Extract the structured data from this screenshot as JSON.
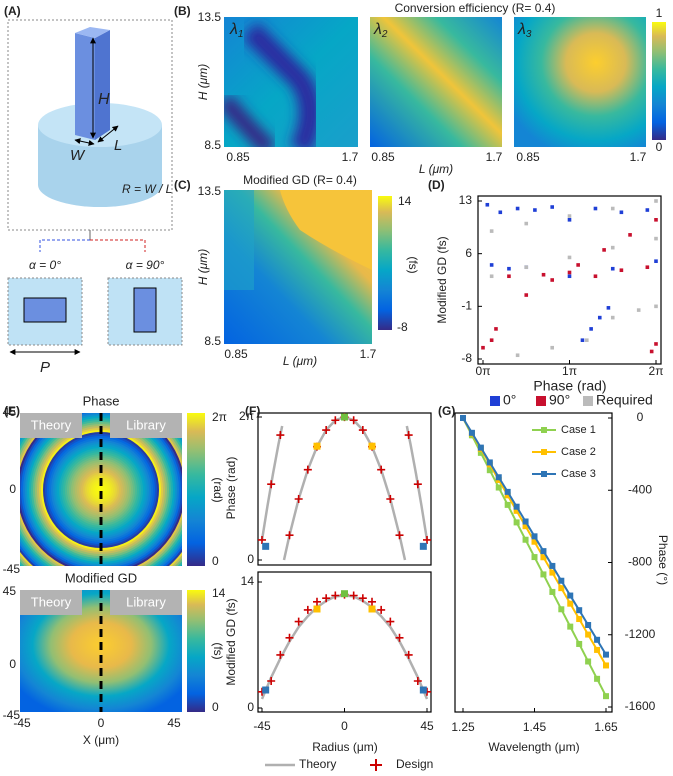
{
  "panel_a": {
    "label": "(A)",
    "H": "H",
    "W": "W",
    "L": "L",
    "ratio": "R = W / L",
    "alpha0": "α = 0°",
    "alpha90": "α = 90°",
    "P": "P"
  },
  "panel_b": {
    "label": "(B)",
    "title": "Conversion efficiency (R= 0.4)",
    "lambda": "λ",
    "indices": [
      "1",
      "2",
      "3"
    ],
    "ylabel": "H (μm)",
    "xlabel": "L (μm)",
    "yticks": [
      13.5,
      8.5
    ],
    "xticks": [
      0.85,
      1.7
    ],
    "cbar_ticks": [
      1,
      0
    ]
  },
  "panel_c": {
    "label": "(C)",
    "title": "Modified GD (R= 0.4)",
    "ylabel": "H (μm)",
    "xlabel": "L (μm)",
    "yticks": [
      13.5,
      8.5
    ],
    "xticks": [
      0.85,
      1.7
    ],
    "cbar_ticks": [
      14,
      -8
    ],
    "cbar_unit": "(fs)"
  },
  "panel_e": {
    "label": "(E)",
    "phase_title": "Phase",
    "gd_title": "Modified GD",
    "theory": "Theory",
    "library": "Library",
    "yticks": [
      45,
      0,
      -45
    ],
    "xticks": [
      -45,
      0,
      45
    ],
    "xlabel": "X (μm)",
    "phase_cbar": [
      {
        "value": 6.283,
        "label": "2π"
      },
      0
    ],
    "phase_unit": "(rad)",
    "gd_cbar": [
      14,
      0
    ],
    "gd_unit": "(fs)"
  },
  "chart_data": [
    {
      "type": "scatter",
      "panel": "(D)",
      "ylabel": "Modified GD (fs)",
      "xlabel": "Phase (rad)",
      "xlim": [
        0,
        2
      ],
      "xticks": [
        {
          "value": 0,
          "label": "0π"
        },
        {
          "value": 1,
          "label": "1π"
        },
        {
          "value": 2,
          "label": "2π"
        }
      ],
      "ylim": [
        -8,
        13
      ],
      "yticks": [
        13,
        6,
        -1,
        -8
      ],
      "series": [
        {
          "name": "0°",
          "color": "#1f3fd6",
          "marker": "square",
          "x": [
            0.05,
            0.2,
            0.4,
            0.6,
            0.8,
            1.0,
            1.3,
            1.6,
            1.9,
            0.1,
            0.3,
            0.5,
            1.15,
            1.25,
            1.35,
            1.45,
            1.0,
            1.5,
            2.0
          ],
          "values": [
            12.5,
            11.5,
            12.0,
            11.8,
            12.2,
            10.5,
            12.0,
            11.5,
            11.8,
            4.5,
            4.0,
            4.2,
            -5.5,
            -4.0,
            -2.5,
            -1.2,
            3.0,
            4.0,
            5.0
          ]
        },
        {
          "name": "90°",
          "color": "#c8102e",
          "marker": "square",
          "x": [
            0.0,
            0.1,
            0.15,
            0.5,
            0.8,
            1.1,
            1.4,
            1.7,
            2.0,
            0.3,
            0.7,
            1.0,
            1.3,
            1.6,
            1.9,
            1.95,
            2.0
          ],
          "values": [
            -6.5,
            -5.5,
            -4.0,
            0.5,
            2.5,
            4.5,
            6.5,
            8.5,
            10.5,
            3.0,
            3.2,
            3.5,
            3.0,
            3.8,
            4.2,
            -7.0,
            -6.0
          ]
        },
        {
          "name": "Required",
          "color": "#bbbbbb",
          "marker": "square",
          "x": [
            0.1,
            0.5,
            1.0,
            1.5,
            2.0,
            0.1,
            0.5,
            1.0,
            1.5,
            2.0,
            0.4,
            0.8,
            1.2,
            1.5,
            1.8,
            2.0
          ],
          "values": [
            9.0,
            10.0,
            11.0,
            12.0,
            13.0,
            3.0,
            4.2,
            5.5,
            6.8,
            8.0,
            -7.5,
            -6.5,
            -5.5,
            -2.5,
            -1.5,
            -1.0
          ]
        }
      ]
    },
    {
      "type": "line",
      "panel": "(F)",
      "ylabel": "Phase (rad)",
      "xlim": [
        -45,
        45
      ],
      "ylim": [
        0,
        6.283
      ],
      "yticks": [
        0,
        {
          "value": 6.283,
          "label": "2π"
        }
      ],
      "series": [
        {
          "color": "#b0b0b0",
          "line": true,
          "x": [
            -45,
            -42,
            -39,
            -36,
            -34,
            -33.5,
            -33,
            -30,
            -25,
            -20,
            -15,
            -10,
            -5,
            0,
            5,
            10,
            15,
            20,
            25,
            30,
            33,
            33.5,
            34,
            36,
            39,
            42,
            45
          ],
          "values": [
            0.88,
            2.38,
            3.79,
            5.09,
            5.89,
            null,
            0.0,
            1.09,
            2.68,
            3.97,
            4.98,
            5.71,
            6.14,
            6.28,
            6.14,
            5.71,
            4.98,
            3.97,
            2.68,
            1.09,
            0.0,
            null,
            5.89,
            5.09,
            3.79,
            2.38,
            0.88
          ]
        },
        {
          "color": "#cc0000",
          "marker": "plus",
          "x": [
            -45,
            -40,
            -35,
            -30,
            -25,
            -20,
            -15,
            -10,
            -5,
            0,
            5,
            10,
            15,
            20,
            25,
            30,
            35,
            40,
            45
          ],
          "values": [
            0.88,
            3.33,
            5.49,
            1.09,
            2.68,
            3.97,
            4.98,
            5.71,
            6.14,
            6.28,
            6.14,
            5.71,
            4.98,
            3.97,
            2.68,
            1.09,
            5.49,
            3.33,
            0.88
          ]
        },
        {
          "marker": "square",
          "colors": [
            "#2e75b6",
            "#ffc000",
            "#70c040",
            "#ffc000",
            "#2e75b6"
          ],
          "x": [
            -43,
            -15,
            0,
            15,
            43
          ],
          "values": [
            0.6,
            5.0,
            6.28,
            5.0,
            0.6
          ]
        }
      ]
    },
    {
      "type": "line",
      "ylabel": "Modified GD (fs)",
      "xlabel": "Radius (μm)",
      "xlim": [
        -45,
        45
      ],
      "xticks": [
        -45,
        0,
        45
      ],
      "ylim": [
        0,
        14
      ],
      "yticks": [
        0,
        14
      ],
      "series": [
        {
          "name": "Theory",
          "color": "#b0b0b0",
          "line": true,
          "x": [
            -45,
            -40,
            -35,
            -30,
            -25,
            -20,
            -15,
            -10,
            -5,
            0,
            5,
            10,
            15,
            20,
            25,
            30,
            35,
            40,
            45
          ],
          "values": [
            1.0,
            3.4,
            5.5,
            7.4,
            9.0,
            10.2,
            11.2,
            11.9,
            12.4,
            12.5,
            12.4,
            11.9,
            11.2,
            10.2,
            9.0,
            7.4,
            5.5,
            3.4,
            1.0
          ]
        },
        {
          "name": "Design",
          "color": "#cc0000",
          "marker": "plus",
          "x": [
            -45,
            -40,
            -35,
            -30,
            -25,
            -20,
            -15,
            -10,
            -5,
            0,
            5,
            10,
            15,
            20,
            25,
            30,
            35,
            40,
            45
          ],
          "values": [
            1.8,
            3.0,
            5.9,
            7.8,
            9.6,
            10.9,
            11.8,
            12.2,
            12.5,
            12.6,
            12.5,
            12.2,
            11.8,
            10.9,
            9.6,
            7.8,
            5.9,
            3.0,
            1.8
          ]
        },
        {
          "marker": "square",
          "colors": [
            "#2e75b6",
            "#ffc000",
            "#70c040",
            "#ffc000",
            "#2e75b6"
          ],
          "x": [
            -43,
            -15,
            0,
            15,
            43
          ],
          "values": [
            2.0,
            11.0,
            12.7,
            11.0,
            2.0
          ]
        }
      ]
    },
    {
      "type": "line",
      "panel": "(G)",
      "xlabel": "Wavelength (μm)",
      "ylabel": "Phase (°)",
      "xlim": [
        1.25,
        1.65
      ],
      "xticks": [
        1.25,
        1.45,
        1.65
      ],
      "ylim": [
        -1600,
        0
      ],
      "yticks": [
        0,
        -400,
        -800,
        -1200,
        -1600
      ],
      "x": [
        1.25,
        1.275,
        1.3,
        1.325,
        1.35,
        1.375,
        1.4,
        1.425,
        1.45,
        1.475,
        1.5,
        1.525,
        1.55,
        1.575,
        1.6,
        1.625,
        1.65
      ],
      "series": [
        {
          "name": "Case 1",
          "color": "#8fd14f",
          "line": true,
          "marker": "square",
          "values": [
            0,
            -96,
            -193,
            -289,
            -385,
            -481,
            -578,
            -674,
            -770,
            -866,
            -963,
            -1059,
            -1155,
            -1251,
            -1348,
            -1444,
            -1540
          ]
        },
        {
          "name": "Case 2",
          "color": "#ffc000",
          "line": true,
          "marker": "square",
          "values": [
            0,
            -86,
            -171,
            -257,
            -343,
            -428,
            -514,
            -599,
            -685,
            -771,
            -856,
            -942,
            -1028,
            -1113,
            -1199,
            -1284,
            -1370
          ]
        },
        {
          "name": "Case 3",
          "color": "#2e75b6",
          "line": true,
          "marker": "square",
          "values": [
            0,
            -82,
            -164,
            -246,
            -328,
            -409,
            -491,
            -573,
            -655,
            -737,
            -819,
            -901,
            -983,
            -1064,
            -1146,
            -1228,
            -1310
          ]
        }
      ]
    }
  ]
}
